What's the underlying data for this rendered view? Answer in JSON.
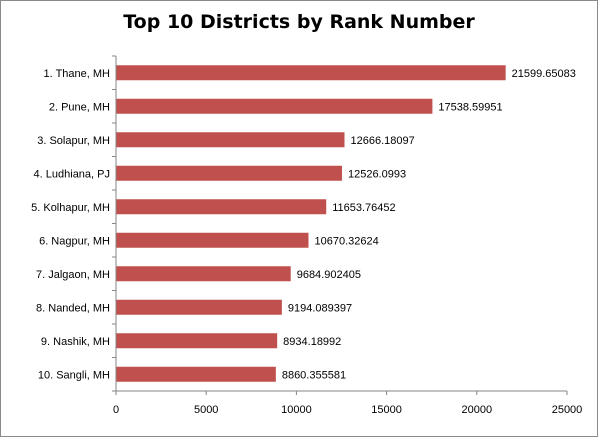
{
  "chart_data": {
    "type": "bar",
    "orientation": "horizontal",
    "title": "Top 10 Districts by Rank Number",
    "xlabel": "",
    "ylabel": "",
    "xlim": [
      0,
      25000
    ],
    "x_ticks": [
      "0",
      "5000",
      "10000",
      "15000",
      "20000",
      "25000"
    ],
    "grid": false,
    "legend": "none",
    "bar_color": "#c0504d",
    "categories": [
      "1. Thane, MH",
      "2. Pune, MH",
      "3. Solapur, MH",
      "4. Ludhiana, PJ",
      "5. Kolhapur, MH",
      "6. Nagpur, MH",
      "7. Jalgaon, MH",
      "8. Nanded, MH",
      "9. Nashik, MH",
      "10. Sangli, MH"
    ],
    "values": [
      21599.65083,
      17538.59951,
      12666.18097,
      12526.0993,
      11653.76452,
      10670.32624,
      9684.902405,
      9194.089397,
      8934.18992,
      8860.355581
    ],
    "value_labels": [
      "21599.65083",
      "17538.59951",
      "12666.18097",
      "12526.0993",
      "11653.76452",
      "10670.32624",
      "9684.902405",
      "9194.089397",
      "8934.18992",
      "8860.355581"
    ]
  }
}
